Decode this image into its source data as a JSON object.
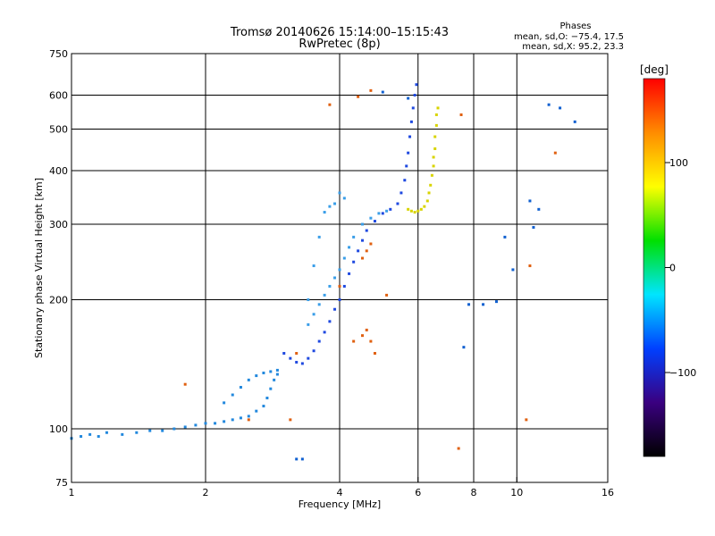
{
  "chart_data": {
    "type": "scatter",
    "title": "Tromsø 20140626 15:14:00–15:15:43",
    "subtitle": "RwPretec (8p)",
    "xlabel": "Frequency [MHz]",
    "ylabel": "Stationary phase Virtual Height [km]",
    "x_scale": "log",
    "y_scale": "log",
    "xlim": [
      1,
      16
    ],
    "ylim": [
      75,
      750
    ],
    "x_ticks": [
      1,
      2,
      4,
      6,
      8,
      10,
      16
    ],
    "x_tick_labels": [
      "1",
      "2",
      "4",
      "6",
      "8",
      "10",
      "16"
    ],
    "y_ticks": [
      75,
      100,
      200,
      300,
      400,
      500,
      600,
      750
    ],
    "y_tick_labels": [
      "75",
      "100",
      "200",
      "300",
      "400",
      "500",
      "600",
      "750"
    ],
    "grid": true,
    "phase_info": {
      "heading": "Phases",
      "line_o": "mean, sd,O: −75.4, 17.5",
      "line_x": "mean, sd,X:  95.2, 23.3"
    },
    "colorbar": {
      "label": "[deg]",
      "min": -180,
      "max": 180,
      "ticks": [
        100,
        0,
        -100
      ],
      "tick_labels": [
        "100",
        "0",
        "−100"
      ],
      "colors": [
        "#ff0000",
        "#ff8c00",
        "#ffff00",
        "#00e000",
        "#00e5ff",
        "#0040ff",
        "#3a0080",
        "#000000"
      ]
    },
    "series": [
      {
        "color": "#2288dd",
        "points": [
          [
            1.0,
            95
          ],
          [
            1.05,
            96
          ],
          [
            1.1,
            97
          ],
          [
            1.15,
            96
          ],
          [
            1.2,
            98
          ],
          [
            1.3,
            97
          ],
          [
            1.4,
            98
          ],
          [
            1.5,
            99
          ],
          [
            1.6,
            99
          ],
          [
            1.7,
            100
          ],
          [
            1.8,
            101
          ],
          [
            1.9,
            102
          ],
          [
            2.0,
            103
          ],
          [
            2.1,
            103
          ],
          [
            2.2,
            104
          ],
          [
            2.3,
            105
          ],
          [
            2.4,
            106
          ],
          [
            2.5,
            107
          ],
          [
            2.6,
            110
          ],
          [
            2.7,
            113
          ],
          [
            2.75,
            118
          ],
          [
            2.8,
            124
          ],
          [
            2.85,
            130
          ],
          [
            2.9,
            134
          ],
          [
            2.2,
            115
          ],
          [
            2.3,
            120
          ],
          [
            2.4,
            125
          ],
          [
            2.5,
            130
          ],
          [
            2.6,
            133
          ],
          [
            2.7,
            135
          ],
          [
            2.8,
            136
          ],
          [
            2.9,
            137
          ]
        ]
      },
      {
        "color": "#1f49e0",
        "points": [
          [
            3.0,
            150
          ],
          [
            3.1,
            146
          ],
          [
            3.2,
            143
          ],
          [
            3.3,
            142
          ],
          [
            3.4,
            146
          ],
          [
            3.5,
            152
          ],
          [
            3.6,
            160
          ],
          [
            3.7,
            168
          ],
          [
            3.8,
            178
          ],
          [
            3.9,
            190
          ],
          [
            4.0,
            200
          ],
          [
            4.1,
            215
          ],
          [
            4.2,
            230
          ],
          [
            4.3,
            245
          ],
          [
            4.4,
            260
          ],
          [
            4.5,
            275
          ],
          [
            4.6,
            290
          ],
          [
            4.8,
            305
          ],
          [
            5.0,
            318
          ],
          [
            5.2,
            325
          ],
          [
            5.4,
            335
          ],
          [
            5.5,
            355
          ],
          [
            5.6,
            380
          ],
          [
            5.65,
            410
          ],
          [
            5.7,
            440
          ],
          [
            5.75,
            480
          ],
          [
            5.8,
            520
          ],
          [
            5.85,
            560
          ],
          [
            5.9,
            600
          ],
          [
            5.95,
            635
          ]
        ]
      },
      {
        "color": "#3a9ee8",
        "points": [
          [
            3.4,
            175
          ],
          [
            3.5,
            185
          ],
          [
            3.6,
            195
          ],
          [
            3.7,
            205
          ],
          [
            3.8,
            215
          ],
          [
            3.9,
            225
          ],
          [
            4.0,
            235
          ],
          [
            4.1,
            250
          ],
          [
            4.2,
            265
          ],
          [
            4.3,
            280
          ],
          [
            4.5,
            300
          ],
          [
            4.7,
            310
          ],
          [
            4.9,
            318
          ],
          [
            5.1,
            322
          ],
          [
            3.8,
            330
          ],
          [
            3.9,
            335
          ],
          [
            4.0,
            355
          ],
          [
            4.1,
            345
          ],
          [
            3.7,
            320
          ],
          [
            3.6,
            280
          ],
          [
            3.5,
            240
          ],
          [
            3.4,
            200
          ]
        ]
      },
      {
        "color": "#d8d400",
        "points": [
          [
            5.7,
            325
          ],
          [
            5.8,
            322
          ],
          [
            5.9,
            320
          ],
          [
            6.0,
            322
          ],
          [
            6.1,
            325
          ],
          [
            6.2,
            330
          ],
          [
            6.3,
            340
          ],
          [
            6.35,
            355
          ],
          [
            6.4,
            370
          ],
          [
            6.45,
            390
          ],
          [
            6.5,
            410
          ],
          [
            6.5,
            430
          ],
          [
            6.55,
            450
          ],
          [
            6.55,
            480
          ],
          [
            6.6,
            510
          ],
          [
            6.6,
            540
          ],
          [
            6.65,
            560
          ]
        ]
      },
      {
        "color": "#e06010",
        "points": [
          [
            4.5,
            250
          ],
          [
            4.6,
            260
          ],
          [
            4.7,
            270
          ],
          [
            4.6,
            170
          ],
          [
            4.7,
            160
          ],
          [
            4.8,
            150
          ],
          [
            4.5,
            165
          ],
          [
            4.3,
            160
          ],
          [
            4.7,
            615
          ],
          [
            4.4,
            595
          ],
          [
            5.1,
            205
          ],
          [
            3.1,
            105
          ],
          [
            3.2,
            150
          ],
          [
            1.8,
            127
          ],
          [
            2.5,
            105
          ],
          [
            7.4,
            90
          ],
          [
            10.5,
            105
          ],
          [
            10.7,
            240
          ],
          [
            12.2,
            440
          ],
          [
            7.5,
            540
          ],
          [
            4.0,
            215
          ],
          [
            3.8,
            570
          ]
        ]
      },
      {
        "color": "#1060d0",
        "points": [
          [
            7.6,
            155
          ],
          [
            10.7,
            340
          ],
          [
            10.9,
            295
          ],
          [
            11.2,
            325
          ],
          [
            11.8,
            570
          ],
          [
            12.5,
            560
          ],
          [
            13.5,
            520
          ],
          [
            9.4,
            280
          ],
          [
            8.4,
            195
          ],
          [
            9.0,
            198
          ],
          [
            9.8,
            235
          ],
          [
            7.8,
            195
          ],
          [
            3.2,
            85
          ],
          [
            3.3,
            85
          ],
          [
            5.7,
            590
          ],
          [
            5.0,
            610
          ]
        ]
      }
    ]
  }
}
